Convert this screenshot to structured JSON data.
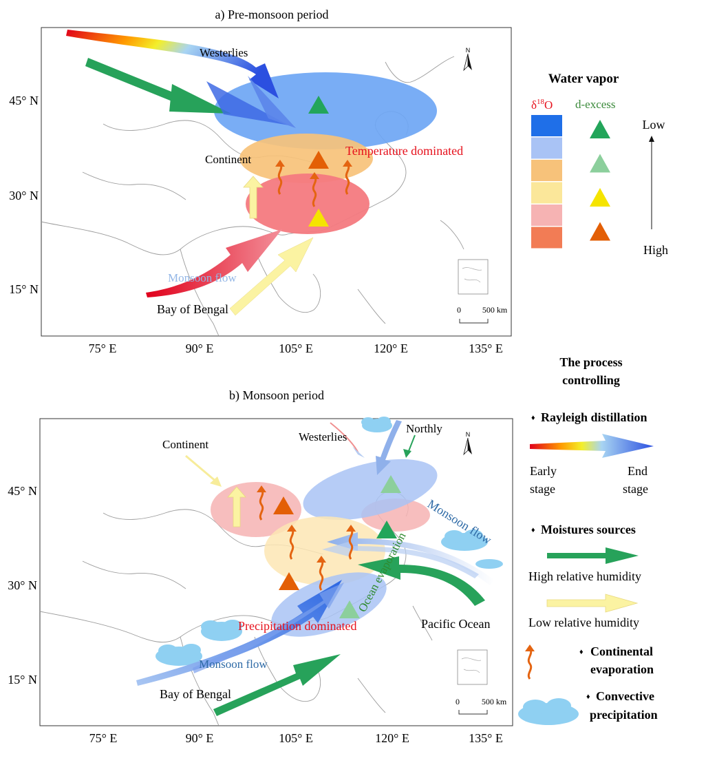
{
  "panels": {
    "a": {
      "title": "a) Pre-monsoon period",
      "lat_labels": [
        "45° N",
        "30° N",
        "15° N"
      ],
      "lon_labels": [
        "75° E",
        "90° E",
        "105° E",
        "120° E",
        "135° E"
      ],
      "labels": {
        "westerlies": "Westerlies",
        "continent": "Continent",
        "temperature": "Temperature dominated",
        "monsoon_flow": "Monsoon flow",
        "bay": "Bay of Bengal"
      },
      "north": "N",
      "scale_zero": "0",
      "scale_dist": "500 km"
    },
    "b": {
      "title": "b) Monsoon period",
      "lat_labels": [
        "45° N",
        "30° N",
        "15° N"
      ],
      "lon_labels": [
        "75° E",
        "90° E",
        "105° E",
        "120° E",
        "135° E"
      ],
      "labels": {
        "continent": "Continent",
        "westerlies": "Westerlies",
        "northly": "Northly",
        "monsoon_flow_ne": "Monsoon flow",
        "ocean_evap": "Ocean evaporation",
        "precip": "Precipitation dominated",
        "pacific": "Pacific Ocean",
        "monsoon_flow_sw": "Monsoon flow",
        "bay": "Bay of Bengal"
      },
      "north": "N",
      "scale_zero": "0",
      "scale_dist": "500 km"
    }
  },
  "legend": {
    "water_vapor_title": "Water vapor",
    "delta_label": "δ",
    "delta_sup": "18",
    "delta_suffix": "O",
    "dexcess_label": "d-excess",
    "low": "Low",
    "high": "High",
    "delta_colors": [
      "#1f6fe8",
      "#a9c3f5",
      "#f7c27a",
      "#fbe79a",
      "#f6b3b3",
      "#f27c55"
    ],
    "dexcess_colors": [
      "#23a55a",
      "#8ccf9c",
      "#f5e400",
      "#e35f06"
    ],
    "process_title_1": "The process",
    "process_title_2": "controlling",
    "rayleigh": "Rayleigh distillation",
    "early_1": "Early",
    "early_2": "stage",
    "end_1": "End",
    "end_2": "stage",
    "moisture": "Moistures sources",
    "high_rh": "High relative humidity",
    "low_rh": "Low relative humidity",
    "cont_evap_1": "Continental",
    "cont_evap_2": "evaporation",
    "conv_1": "Convective",
    "conv_2": "precipitation",
    "bullet": "♦"
  }
}
